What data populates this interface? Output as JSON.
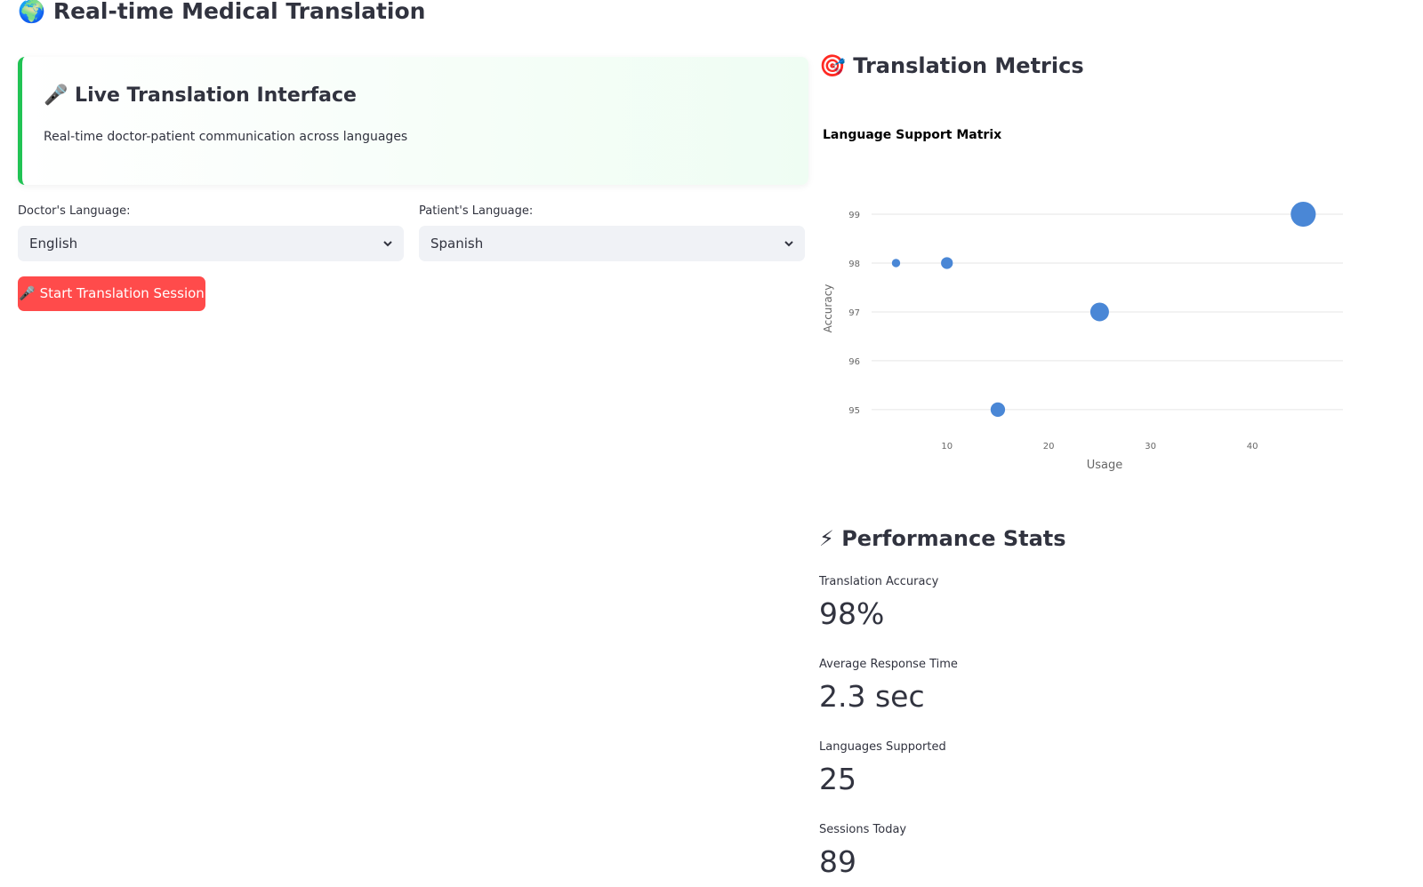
{
  "header": {
    "title": "🌍 Real-time Medical Translation"
  },
  "live_card": {
    "title": "🎤 Live Translation Interface",
    "description": "Real-time doctor-patient communication across languages"
  },
  "doctor_language": {
    "label": "Doctor's Language:",
    "value": "English"
  },
  "patient_language": {
    "label": "Patient's Language:",
    "value": "Spanish"
  },
  "start_button": "🎤 Start Translation Session",
  "metrics_heading": "🎯 Translation Metrics",
  "chart_data": {
    "type": "scatter",
    "title": "Language Support Matrix",
    "x_label": "Usage",
    "y_label": "Accuracy",
    "x": [
      5,
      10,
      15,
      25,
      45
    ],
    "values": [
      98,
      98,
      95,
      97,
      99
    ],
    "sizes": [
      5,
      10,
      15,
      25,
      45
    ],
    "color": "#4a87d6",
    "xlim": [
      2.6,
      48.9
    ],
    "ylim": [
      94.47,
      99.51
    ],
    "xticks": [
      10,
      20,
      30,
      40
    ],
    "yticks": [
      95,
      96,
      97,
      98,
      99
    ],
    "grid": true
  },
  "performance_heading": "⚡ Performance Stats",
  "stats": [
    {
      "label": "Translation Accuracy",
      "value": "98%"
    },
    {
      "label": "Average Response Time",
      "value": "2.3 sec"
    },
    {
      "label": "Languages Supported",
      "value": "25"
    },
    {
      "label": "Sessions Today",
      "value": "89"
    }
  ]
}
